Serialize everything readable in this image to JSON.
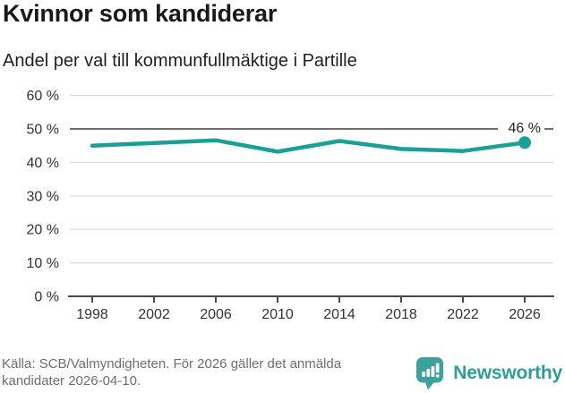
{
  "header": {
    "title": "Kvinnor som kandiderar",
    "subtitle": "Andel per val till kommunfullmäktige i Partille"
  },
  "chart_data": {
    "type": "line",
    "title": "Kvinnor som kandiderar",
    "subtitle": "Andel per val till kommunfullmäktige i Partille",
    "x": [
      1998,
      2002,
      2006,
      2010,
      2014,
      2018,
      2022,
      2026
    ],
    "series": [
      {
        "name": "Andel kvinnor som kandiderar",
        "values": [
          45,
          45.8,
          46.6,
          43.2,
          46.4,
          44,
          43.4,
          45.9
        ]
      }
    ],
    "end_label": "46 %",
    "ylim": [
      0,
      60
    ],
    "ytick_step": 10,
    "yticks": [
      "0 %",
      "10 %",
      "20 %",
      "30 %",
      "40 %",
      "50 %",
      "60 %"
    ],
    "reference_line": 50,
    "grid": true,
    "legend": "none",
    "colors": {
      "line": "#1aa096",
      "grid": "#dcdcdc",
      "reference_line": "#6e6e6e",
      "axis": "#4a4a4a",
      "tick_text": "#333333",
      "end_label_text": "#222222"
    }
  },
  "footer": {
    "source_lines": [
      "Källa: SCB/Valmyndigheten. För 2026 gäller det anmälda",
      "kandidater 2026-04-10."
    ],
    "brand": {
      "name": "Newsworthy",
      "text_color": "#2e9e97",
      "icon_color": "#3ca39c"
    }
  }
}
